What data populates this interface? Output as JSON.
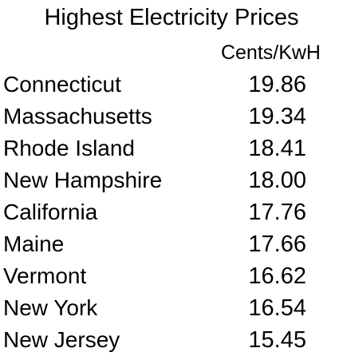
{
  "table": {
    "title": "Highest Electricity Prices",
    "column_header": "Cents/KwH",
    "rows": [
      {
        "state": "Connecticut",
        "price": "19.86"
      },
      {
        "state": "Massachusetts",
        "price": "19.34"
      },
      {
        "state": "Rhode Island",
        "price": "18.41"
      },
      {
        "state": "New Hampshire",
        "price": "18.00"
      },
      {
        "state": "California",
        "price": "17.76"
      },
      {
        "state": "Maine",
        "price": "17.66"
      },
      {
        "state": "Vermont",
        "price": "16.62"
      },
      {
        "state": "New York",
        "price": "16.54"
      },
      {
        "state": "New Jersey",
        "price": "15.45"
      }
    ]
  }
}
